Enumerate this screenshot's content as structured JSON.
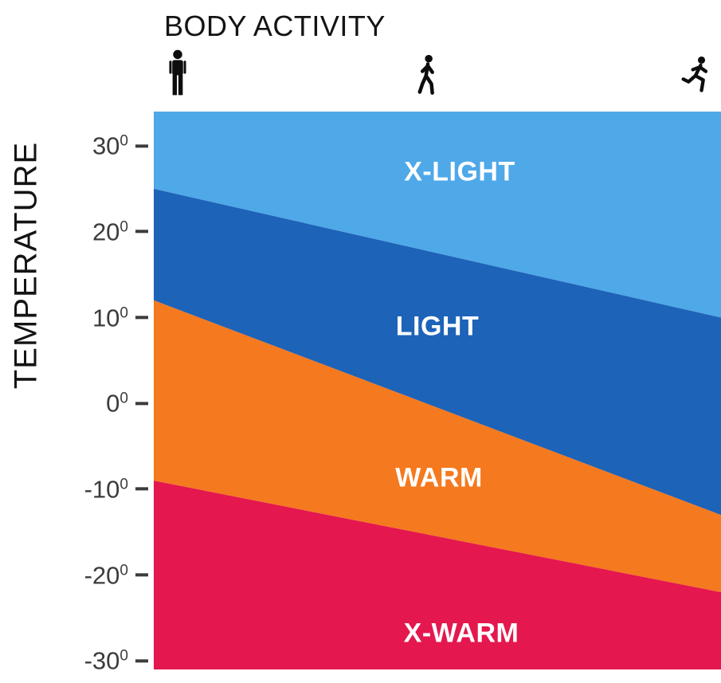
{
  "x_axis": {
    "title": "BODY ACTIVITY",
    "icons": [
      {
        "name": "standing-person-icon",
        "activity": "standing"
      },
      {
        "name": "walking-person-icon",
        "activity": "walking"
      },
      {
        "name": "running-person-icon",
        "activity": "running"
      }
    ]
  },
  "y_axis": {
    "label": "TEMPERATURE",
    "tick_values": [
      30,
      20,
      10,
      0,
      -10,
      -20,
      -30
    ],
    "tick_superscript": "0",
    "tick_color": "#3c3c3c"
  },
  "chart_data": {
    "type": "area",
    "xlabel": "BODY ACTIVITY",
    "ylabel": "TEMPERATURE",
    "x_categories": [
      "standing",
      "walking",
      "running"
    ],
    "ylim": [
      -31,
      34
    ],
    "grid": false,
    "bands": [
      {
        "label": "X-LIGHT",
        "color": "#4FA8E8",
        "text_color": "#FFFFFF",
        "top_edge_temp": [
          34,
          34
        ],
        "bottom_edge_temp": [
          25,
          10
        ]
      },
      {
        "label": "LIGHT",
        "color": "#1D63B8",
        "text_color": "#FFFFFF",
        "top_edge_temp": [
          25,
          10
        ],
        "bottom_edge_temp": [
          12,
          -13
        ]
      },
      {
        "label": "WARM",
        "color": "#F5791E",
        "text_color": "#FFFFFF",
        "top_edge_temp": [
          12,
          -13
        ],
        "bottom_edge_temp": [
          -9,
          -22
        ]
      },
      {
        "label": "X-WARM",
        "color": "#E4174E",
        "text_color": "#FFFFFF",
        "top_edge_temp": [
          -9,
          -22
        ],
        "bottom_edge_temp": [
          -31,
          -31
        ]
      }
    ]
  }
}
